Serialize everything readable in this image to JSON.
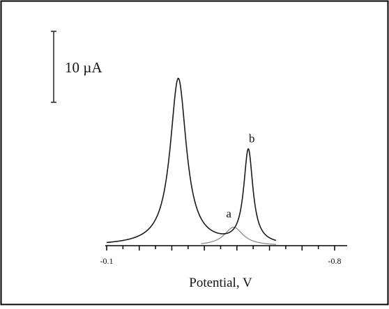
{
  "chart_data": {
    "type": "line",
    "title": "",
    "xlabel": "Potential, V",
    "ylabel": "",
    "xlim": [
      -0.1,
      -0.8
    ],
    "x_ticks": [
      {
        "value": -0.1,
        "label": "-0.1"
      },
      {
        "value": -0.8,
        "label": "-0.8"
      }
    ],
    "scale_bar": {
      "value": 10,
      "label": "10 µA"
    },
    "grid": false,
    "series": [
      {
        "name": "a",
        "color": "#8a8a8a",
        "peak_x": -0.49,
        "peak_height": 2.6,
        "width": 0.035
      },
      {
        "name": "b",
        "color": "#1a1a1a",
        "peaks": [
          {
            "x": -0.32,
            "height": 23.5,
            "width": 0.03
          },
          {
            "x": -0.535,
            "height": 13.2,
            "width": 0.017
          }
        ]
      }
    ],
    "annotations": [
      {
        "text": "a",
        "series": "a"
      },
      {
        "text": "b",
        "series": "b"
      }
    ]
  }
}
